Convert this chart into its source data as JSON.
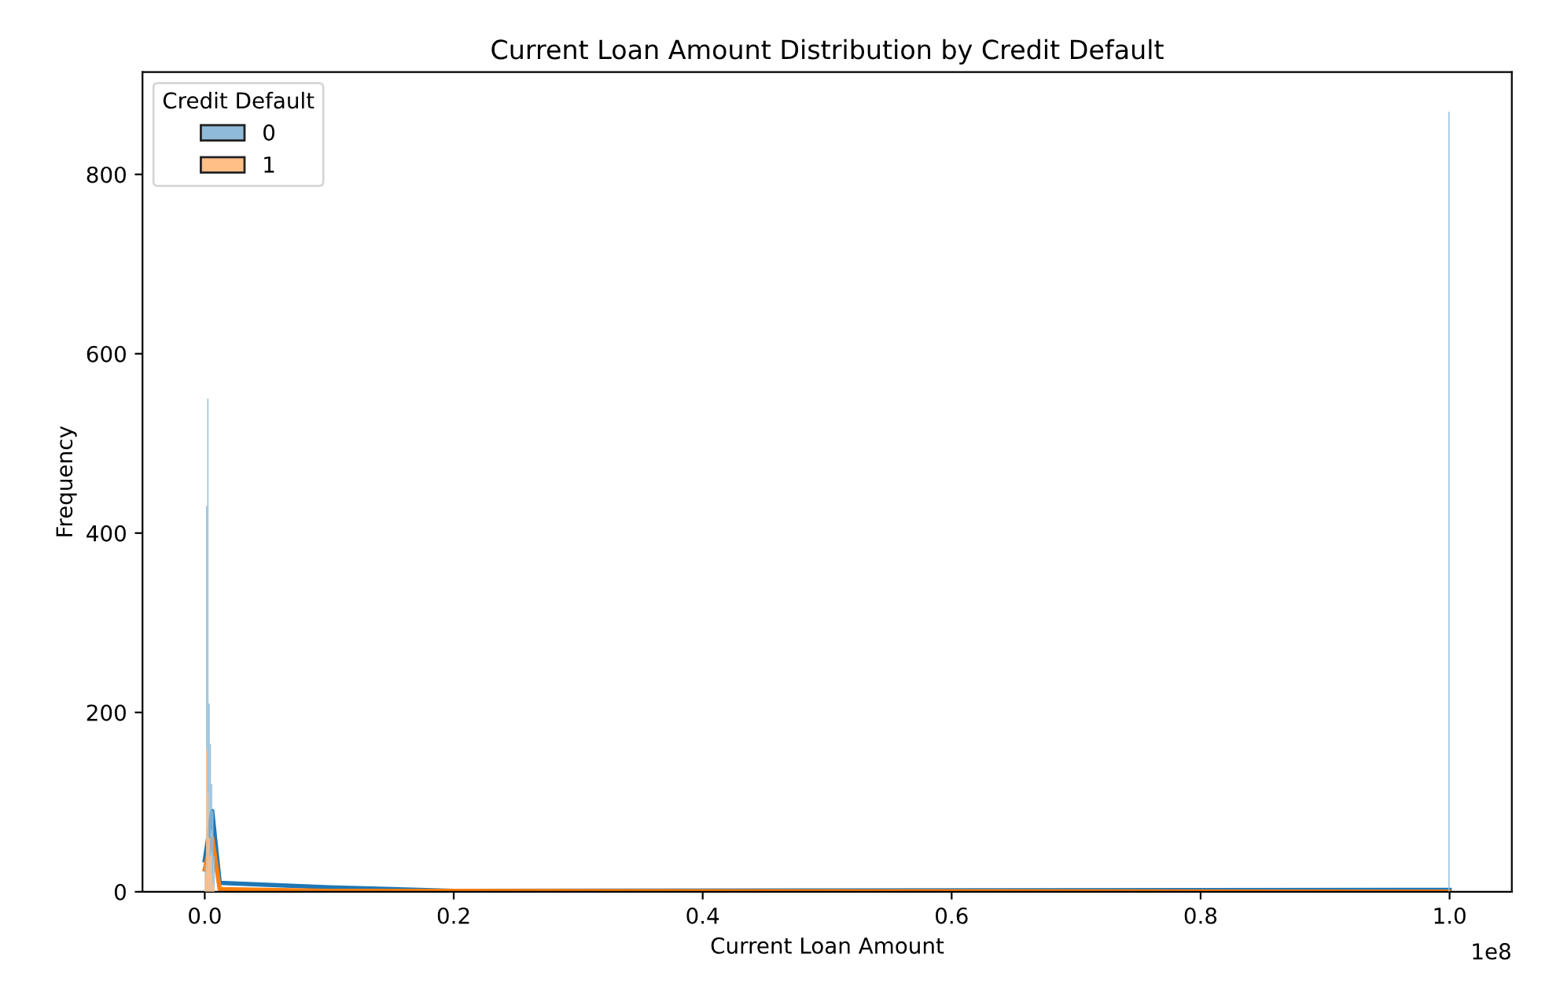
{
  "chart_data": {
    "type": "histogram",
    "title": "Current Loan Amount Distribution by Credit Default",
    "xlabel": "Current Loan Amount",
    "ylabel": "Frequency",
    "legend_title": "Credit Default",
    "bins": [
      0,
      0.001,
      0.002,
      0.003,
      0.004,
      0.005,
      0.006,
      0.007,
      0.008,
      0.999,
      1
    ],
    "series": [
      {
        "name": "0",
        "color": "#8fbbd9",
        "values": [
          30,
          430,
          550,
          210,
          165,
          120,
          90,
          40,
          0,
          870
        ]
      },
      {
        "name": "1",
        "color": "#ffbf87",
        "values": [
          20,
          160,
          110,
          60,
          40,
          20,
          10,
          5,
          0,
          0
        ]
      },
      {
        "type": "line",
        "color": "#1f77b4",
        "x": [
          0,
          0.006,
          0.012,
          0.1,
          0.2,
          1
        ],
        "values": [
          35,
          90,
          10,
          5,
          1,
          2
        ]
      },
      {
        "type": "line",
        "color": "#ff7f0e",
        "x": [
          0,
          0.006,
          0.012,
          0.1,
          1
        ],
        "values": [
          25,
          60,
          3,
          1,
          0
        ]
      }
    ],
    "xlim": [
      -0.05,
      1.05
    ],
    "ylim": [
      0,
      914
    ],
    "xticks": [
      {
        "value": 0,
        "label": "0.0"
      },
      0.2,
      0.4,
      0.6,
      0.8,
      {
        "value": 1,
        "label": "1.0"
      }
    ],
    "yticks": [
      0,
      200,
      400,
      600,
      800
    ],
    "annotations": [
      "1e8"
    ],
    "legend": "top left",
    "grid": false
  }
}
